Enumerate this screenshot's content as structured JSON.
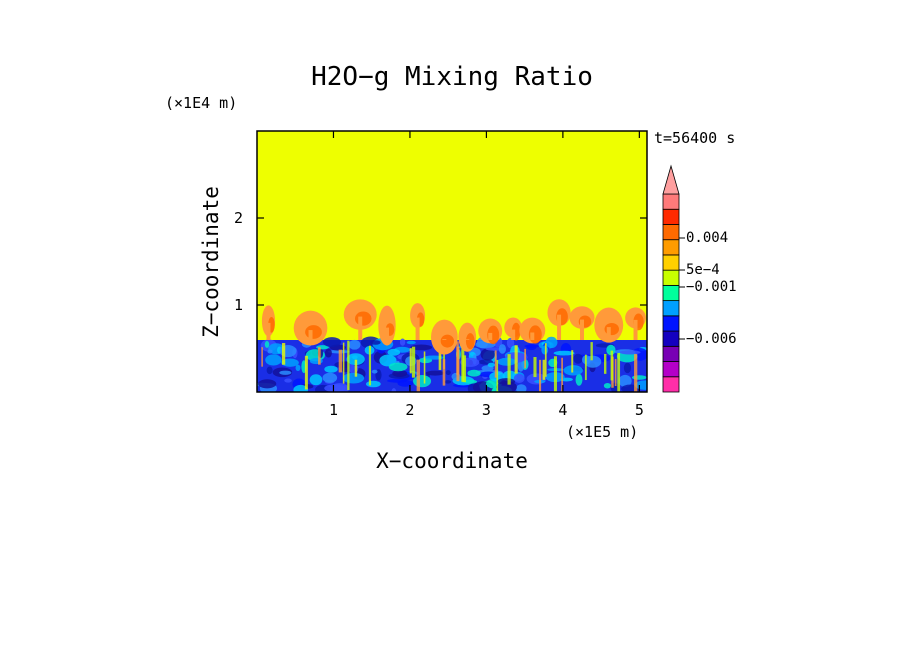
{
  "chart_data": {
    "type": "heatmap",
    "title": "H2O−g Mixing Ratio",
    "xlabel": "X−coordinate",
    "ylabel": "Z−coordinate",
    "x_units": "(×1E5 m)",
    "y_units": "(×1E4 m)",
    "time_label": "t=56400 s",
    "xlim": [
      0,
      5.1
    ],
    "ylim": [
      0,
      3
    ],
    "x_ticks": [
      "1",
      "2",
      "3",
      "4",
      "5"
    ],
    "y_ticks": [
      "1",
      "2"
    ],
    "colorbar": {
      "labels": [
        "0.004",
        "5e−4",
        "−0.001",
        "−0.006"
      ],
      "colors": [
        "#ff2ea8",
        "#b400c8",
        "#7800b4",
        "#1400c0",
        "#0014ff",
        "#00a0ff",
        "#00ff9c",
        "#c8ff00",
        "#ffd000",
        "#ff9c00",
        "#ff6a00",
        "#ff2a00",
        "#ff7a7a"
      ]
    },
    "regions": [
      {
        "name": "upper layer",
        "z_range": [
          0.6,
          3
        ],
        "color": "#eeff00"
      },
      {
        "name": "boundary layer",
        "z_range": [
          0,
          0.6
        ],
        "color": "#1a2ee6"
      },
      {
        "name": "plumes",
        "z_range": [
          0.5,
          1.05
        ],
        "color": "#ff9a3a"
      }
    ]
  }
}
